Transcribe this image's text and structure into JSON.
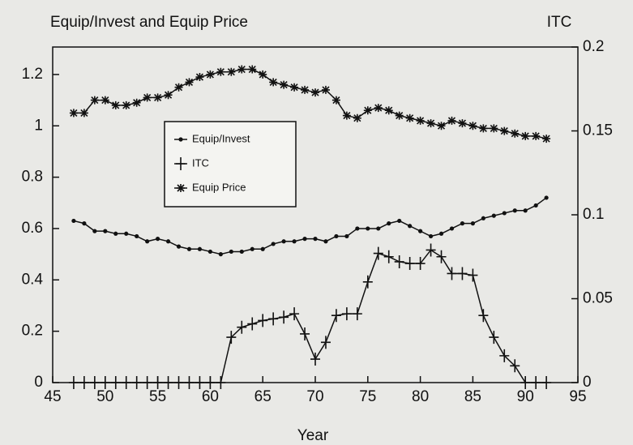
{
  "chart_data": {
    "type": "line",
    "title": "Equip/Invest and Equip Price",
    "y2_label": "ITC",
    "xlabel": "Year",
    "x": [
      47,
      48,
      49,
      50,
      51,
      52,
      53,
      54,
      55,
      56,
      57,
      58,
      59,
      60,
      61,
      62,
      63,
      64,
      65,
      66,
      67,
      68,
      69,
      70,
      71,
      72,
      73,
      74,
      75,
      76,
      77,
      78,
      79,
      80,
      81,
      82,
      83,
      84,
      85,
      86,
      87,
      88,
      89,
      90,
      91,
      92
    ],
    "series": [
      {
        "name": "Equip/Invest",
        "color": "#111111",
        "marker": "dot",
        "values": [
          0.63,
          0.62,
          0.59,
          0.59,
          0.58,
          0.58,
          0.57,
          0.55,
          0.56,
          0.55,
          0.53,
          0.52,
          0.52,
          0.51,
          0.5,
          0.51,
          0.51,
          0.52,
          0.52,
          0.54,
          0.55,
          0.55,
          0.56,
          0.56,
          0.55,
          0.57,
          0.57,
          0.6,
          0.6,
          0.6,
          0.62,
          0.63,
          0.61,
          0.59,
          0.57,
          0.58,
          0.6,
          0.62,
          0.62,
          0.64,
          0.65,
          0.66,
          0.67,
          0.67,
          0.69,
          0.72
        ]
      },
      {
        "name": "ITC",
        "color": "#111111",
        "marker": "plus",
        "axis": "y2",
        "values": [
          0,
          0,
          0,
          0,
          0,
          0,
          0,
          0,
          0,
          0,
          0,
          0,
          0,
          0,
          0,
          0.027,
          0.033,
          0.035,
          0.037,
          0.038,
          0.039,
          0.041,
          0.029,
          0.014,
          0.024,
          0.04,
          0.041,
          0.041,
          0.06,
          0.077,
          0.075,
          0.072,
          0.071,
          0.071,
          0.079,
          0.075,
          0.065,
          0.065,
          0.064,
          0.04,
          0.027,
          0.016,
          0.01,
          0,
          0,
          0
        ]
      },
      {
        "name": "Equip Price",
        "color": "#111111",
        "marker": "star",
        "values": [
          1.05,
          1.05,
          1.1,
          1.1,
          1.08,
          1.08,
          1.09,
          1.11,
          1.11,
          1.12,
          1.15,
          1.17,
          1.19,
          1.2,
          1.21,
          1.21,
          1.22,
          1.22,
          1.2,
          1.17,
          1.16,
          1.15,
          1.14,
          1.13,
          1.14,
          1.1,
          1.04,
          1.03,
          1.06,
          1.07,
          1.06,
          1.04,
          1.03,
          1.02,
          1.01,
          1.0,
          1.02,
          1.01,
          1.0,
          0.99,
          0.99,
          0.98,
          0.97,
          0.96,
          0.96,
          0.95
        ]
      }
    ],
    "xlim": [
      45,
      95
    ],
    "xticks": [
      45,
      50,
      55,
      60,
      65,
      70,
      75,
      80,
      85,
      90,
      95
    ],
    "ylim": [
      0,
      1.307
    ],
    "yticks": [
      0,
      0.2,
      0.4,
      0.6,
      0.8,
      1,
      1.2
    ],
    "y2lim": [
      0,
      0.2
    ],
    "y2ticks": [
      0,
      0.05,
      0.1,
      0.15,
      0.2
    ],
    "grid": false,
    "legend": "upper left"
  }
}
